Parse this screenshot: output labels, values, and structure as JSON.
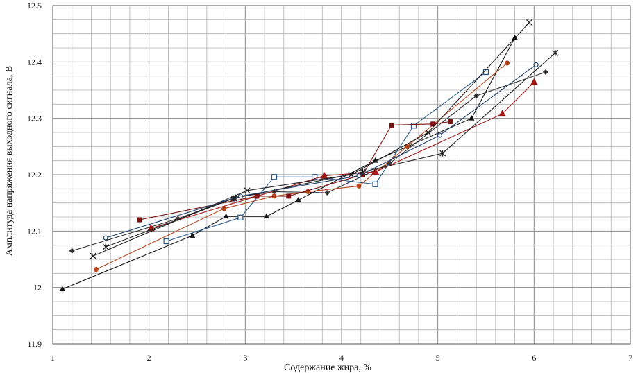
{
  "chart_data": {
    "type": "line",
    "title": "",
    "xlabel": "Содержание жира, %",
    "ylabel": "Амплитуда напряжения выходного сигнала, В",
    "xlim": [
      1,
      7
    ],
    "ylim": [
      11.9,
      12.5
    ],
    "x_ticks": [
      "1",
      "2",
      "3",
      "4",
      "5",
      "6",
      "7"
    ],
    "y_ticks": [
      "11.9",
      "12",
      "12.1",
      "12.2",
      "12.3",
      "12.4",
      "12.5"
    ],
    "grid": true,
    "legend": "none",
    "series": [
      {
        "color": "#111111",
        "marker": "triangle",
        "points": [
          [
            1.1,
            11.997
          ],
          [
            2.45,
            12.092
          ],
          [
            2.8,
            12.126
          ],
          [
            3.22,
            12.126
          ],
          [
            3.55,
            12.155
          ],
          [
            4.35,
            12.225
          ],
          [
            5.35,
            12.3
          ],
          [
            5.8,
            12.443
          ]
        ]
      },
      {
        "color": "#333333",
        "marker": "diamond",
        "points": [
          [
            1.2,
            12.065
          ],
          [
            2.3,
            12.122
          ],
          [
            2.9,
            12.16
          ],
          [
            3.3,
            12.17
          ],
          [
            3.85,
            12.168
          ],
          [
            4.5,
            12.22
          ],
          [
            5.4,
            12.34
          ],
          [
            6.12,
            12.382
          ]
        ]
      },
      {
        "color": "#2b5a8a",
        "marker": "open-square",
        "points": [
          [
            2.18,
            12.082
          ],
          [
            2.95,
            12.124
          ],
          [
            3.3,
            12.196
          ],
          [
            3.72,
            12.196
          ],
          [
            4.35,
            12.183
          ],
          [
            4.75,
            12.287
          ],
          [
            5.5,
            12.382
          ]
        ]
      },
      {
        "color": "#b5451b",
        "marker": "circle",
        "points": [
          [
            1.45,
            12.032
          ],
          [
            2.78,
            12.14
          ],
          [
            3.3,
            12.162
          ],
          [
            3.65,
            12.17
          ],
          [
            4.18,
            12.18
          ],
          [
            4.68,
            12.25
          ],
          [
            5.72,
            12.398
          ]
        ]
      },
      {
        "color": "#7a1010",
        "marker": "square",
        "points": [
          [
            1.9,
            12.12
          ],
          [
            3.12,
            12.162
          ],
          [
            3.45,
            12.162
          ],
          [
            4.22,
            12.2
          ],
          [
            4.52,
            12.288
          ],
          [
            4.95,
            12.29
          ],
          [
            5.13,
            12.294
          ]
        ]
      },
      {
        "color": "#a01818",
        "marker": "triangle-large",
        "points": [
          [
            2.02,
            12.105
          ],
          [
            3.82,
            12.198
          ],
          [
            4.35,
            12.205
          ],
          [
            5.67,
            12.308
          ],
          [
            6.0,
            12.364
          ]
        ]
      },
      {
        "color": "#222222",
        "marker": "asterisk",
        "points": [
          [
            1.42,
            12.056
          ],
          [
            3.02,
            12.172
          ],
          [
            4.1,
            12.2
          ],
          [
            4.9,
            12.275
          ],
          [
            5.95,
            12.47
          ]
        ]
      },
      {
        "color": "#222222",
        "marker": "star",
        "points": [
          [
            1.55,
            12.072
          ],
          [
            2.88,
            12.158
          ],
          [
            4.22,
            12.205
          ],
          [
            5.05,
            12.238
          ],
          [
            6.22,
            12.416
          ]
        ]
      },
      {
        "color": "#1f3f6b",
        "marker": "open-circle",
        "points": [
          [
            1.55,
            12.088
          ],
          [
            2.95,
            12.162
          ],
          [
            4.18,
            12.198
          ],
          [
            5.02,
            12.27
          ],
          [
            6.02,
            12.395
          ]
        ]
      }
    ]
  }
}
